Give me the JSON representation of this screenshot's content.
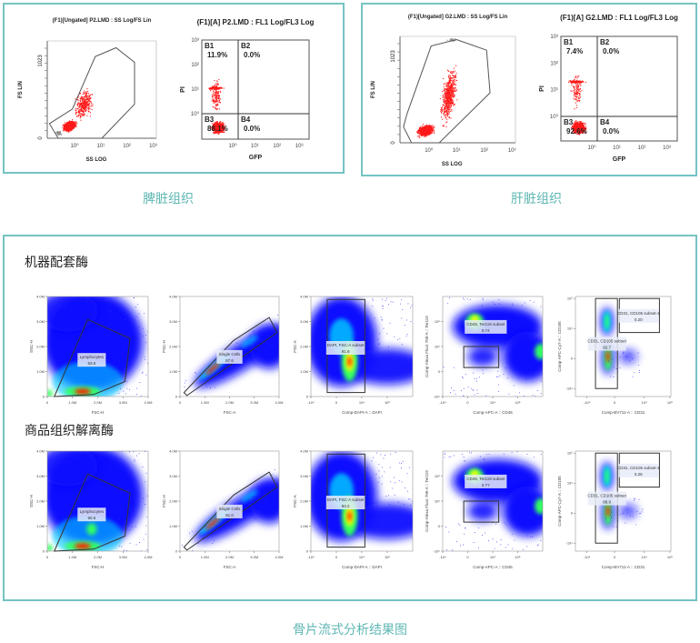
{
  "captions": {
    "spleen": "脾脏组织",
    "liver": "肝脏组织",
    "bottom": "骨片流式分析结果图"
  },
  "sections": {
    "machine": "机器配套酶",
    "commercial": "商品组织解离酶"
  },
  "colors": {
    "frame": "#74c4c2",
    "caption": "#5fb7b4",
    "events": "#ff0000",
    "density_low": "#0000ff"
  },
  "chart_data": [
    {
      "id": "spleen-scatter",
      "type": "scatter",
      "title": "(F1)[Ungated] P2.LMD : SS Log/FS Lin",
      "xlabel": "SS LOG",
      "ylabel": "FS LIN",
      "x_ticks": [
        "10⁰",
        "10¹",
        "10²",
        "10³"
      ],
      "y_ticks": [
        "0",
        "1023"
      ],
      "x_scale": "log",
      "gates": []
    },
    {
      "id": "spleen-quadrant",
      "type": "scatter",
      "title": "(F1)[A] P2.LMD : FL1 Log/FL3 Log",
      "xlabel": "GFP",
      "ylabel": "PI",
      "x_ticks": [
        "10⁰",
        "10¹",
        "10²",
        "10³"
      ],
      "y_ticks": [
        "10⁰",
        "10¹",
        "10²",
        "10³"
      ],
      "x_scale": "log",
      "y_scale": "log",
      "gates": [
        {
          "label": "B1",
          "value": "11.9%"
        },
        {
          "label": "B2",
          "value": "0.0%"
        },
        {
          "label": "B3",
          "value": "88.1%"
        },
        {
          "label": "B4",
          "value": "0.0%"
        }
      ]
    },
    {
      "id": "liver-scatter",
      "type": "scatter",
      "title": "(F1)[Ungated] G2.LMD : SS Log/FS Lin",
      "xlabel": "SS LOG",
      "ylabel": "FS LIN",
      "x_ticks": [
        "10⁰",
        "10¹",
        "10²",
        "10³"
      ],
      "y_ticks": [
        "0",
        "1023"
      ],
      "x_scale": "log",
      "gates": []
    },
    {
      "id": "liver-quadrant",
      "type": "scatter",
      "title": "(F1)[A] G2.LMD : FL1 Log/FL3 Log",
      "xlabel": "GFP",
      "ylabel": "PI",
      "x_ticks": [
        "10⁰",
        "10¹",
        "10²",
        "10³"
      ],
      "y_ticks": [
        "10⁰",
        "10¹",
        "10²",
        "10³"
      ],
      "x_scale": "log",
      "y_scale": "log",
      "gates": [
        {
          "label": "B1",
          "value": "7.4%"
        },
        {
          "label": "B2",
          "value": "0.0%"
        },
        {
          "label": "B3",
          "value": "92.6%"
        },
        {
          "label": "B4",
          "value": "0.0%"
        }
      ]
    },
    {
      "id": "m-lymph",
      "type": "heatmap",
      "xlabel": "FSC-H",
      "ylabel": "SSC-H",
      "x_ticks": [
        "0",
        "1.0M",
        "2.0M",
        "3.0M",
        "4.0M"
      ],
      "y_ticks": [
        "0",
        "1.0M",
        "2.0M",
        "3.0M",
        "4.0M"
      ],
      "gates": [
        {
          "label": "Lymphocytes",
          "value": "93.6"
        }
      ]
    },
    {
      "id": "m-single",
      "type": "heatmap",
      "xlabel": "FSC-A",
      "ylabel": "FSC-H",
      "x_ticks": [
        "0",
        "1.0M",
        "2.0M",
        "3.0M",
        "4.0M"
      ],
      "y_ticks": [
        "0",
        "1.0M",
        "2.0M",
        "3.0M",
        "4.0M"
      ],
      "gates": [
        {
          "label": "Single Cells",
          "value": "87.6"
        }
      ]
    },
    {
      "id": "m-dapi",
      "type": "heatmap",
      "xlabel": "Comp-DAPI-A :: DAPI",
      "ylabel": "FSC-A",
      "x_ticks": [
        "-10⁴",
        "0",
        "10⁴",
        "10⁵"
      ],
      "y_ticks": [
        "0",
        "1.0M",
        "2.0M",
        "3.0M",
        "4.0M"
      ],
      "gates": [
        {
          "label": "DAPI, FSC-A subset",
          "value": "91.6"
        }
      ]
    },
    {
      "id": "m-cd45",
      "type": "heatmap",
      "xlabel": "Comp-APC-A :: CD45",
      "ylabel": "Comp-Alexa Fluor 700-A :: Ter119",
      "x_ticks": [
        "-10⁴",
        "0",
        "10⁴",
        "10⁵"
      ],
      "y_ticks": [
        "-10⁴",
        "0",
        "10⁴",
        "10⁵"
      ],
      "gates": [
        {
          "label": "CD45, Ter119 subset",
          "value": "0.74"
        }
      ]
    },
    {
      "id": "m-cd31",
      "type": "heatmap",
      "xlabel": "Comp-BV711-A :: CD31",
      "ylabel": "Comp-APC-Cy7-A :: CD105",
      "x_ticks": [
        "-10⁴",
        "0",
        "10⁴",
        "10⁵"
      ],
      "y_ticks": [
        "-10⁴",
        "0",
        "10⁴",
        "10⁵"
      ],
      "gates": [
        {
          "label": "CD31, CD105 subset-1",
          "value": "0.20"
        },
        {
          "label": "CD31, CD105 subset",
          "value": "92.7"
        }
      ]
    },
    {
      "id": "c-lymph",
      "type": "heatmap",
      "xlabel": "FSC-H",
      "ylabel": "SSC-H",
      "x_ticks": [
        "0",
        "1.0M",
        "2.0M",
        "3.0M",
        "4.0M"
      ],
      "y_ticks": [
        "0",
        "1.0M",
        "2.0M",
        "3.0M",
        "4.0M"
      ],
      "gates": [
        {
          "label": "Lymphocytes",
          "value": "90.6"
        }
      ]
    },
    {
      "id": "c-single",
      "type": "heatmap",
      "xlabel": "FSC-A",
      "ylabel": "FSC-H",
      "x_ticks": [
        "0",
        "1.0M",
        "2.0M",
        "3.0M",
        "4.0M"
      ],
      "y_ticks": [
        "0",
        "1.0M",
        "2.0M",
        "3.0M",
        "4.0M"
      ],
      "gates": [
        {
          "label": "Single Cells",
          "value": "91.0"
        }
      ]
    },
    {
      "id": "c-dapi",
      "type": "heatmap",
      "xlabel": "Comp-DAPI-A :: DAPI",
      "ylabel": "FSC-A",
      "x_ticks": [
        "-10⁴",
        "0",
        "10⁴",
        "10⁵"
      ],
      "y_ticks": [
        "0",
        "1.0M",
        "2.0M",
        "3.0M",
        "4.0M"
      ],
      "gates": [
        {
          "label": "DAPI, FSC-A subset",
          "value": "93.2"
        }
      ]
    },
    {
      "id": "c-cd45",
      "type": "heatmap",
      "xlabel": "Comp-APC-A :: CD45",
      "ylabel": "Comp-Alexa Fluor 700-A :: Ter119",
      "x_ticks": [
        "-10⁴",
        "0",
        "10⁴",
        "10⁵"
      ],
      "y_ticks": [
        "-10⁴",
        "0",
        "10⁴",
        "10⁵"
      ],
      "gates": [
        {
          "label": "CD45, Ter119 subset",
          "value": "0.77"
        }
      ]
    },
    {
      "id": "c-cd31",
      "type": "heatmap",
      "xlabel": "Comp-BV711-A :: CD31",
      "ylabel": "Comp-APC-Cy7-A :: CD105",
      "x_ticks": [
        "-10⁴",
        "0",
        "10⁴",
        "10⁵"
      ],
      "y_ticks": [
        "-10⁴",
        "0",
        "10⁴",
        "10⁵"
      ],
      "gates": [
        {
          "label": "CD31, CD105 subset-1",
          "value": "0.25"
        },
        {
          "label": "CD31, CD105 subset",
          "value": "88.9"
        }
      ]
    }
  ]
}
